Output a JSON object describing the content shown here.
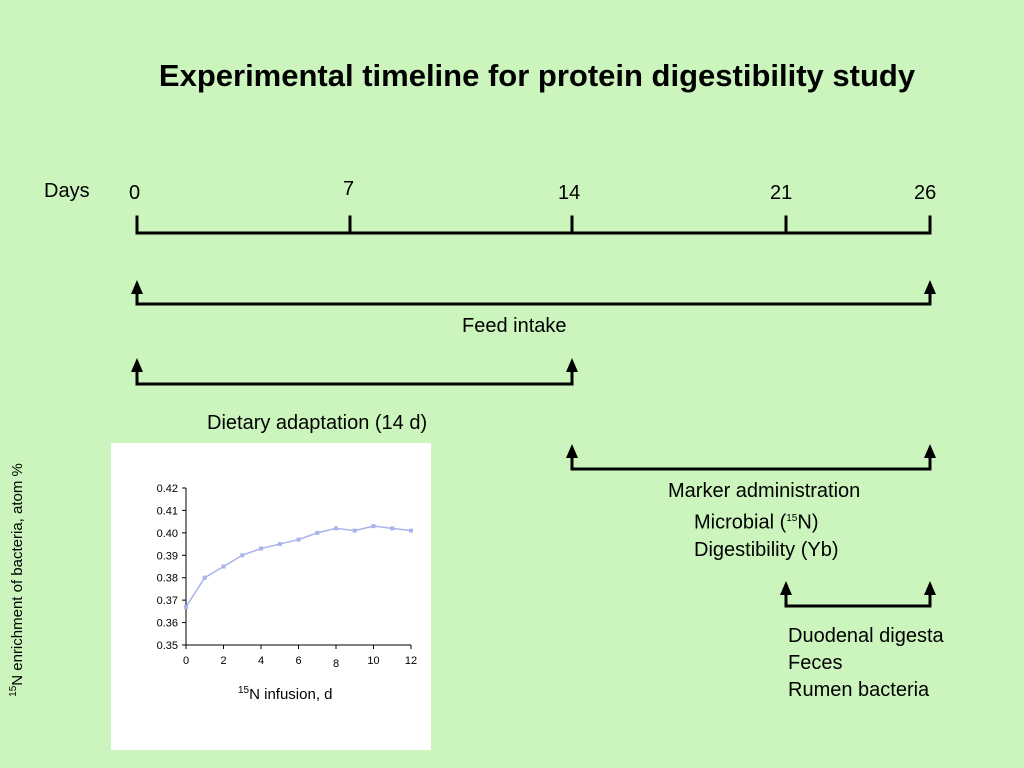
{
  "title": "Experimental timeline for protein digestibility study",
  "timeline": {
    "axis_label": "Days",
    "ticks": [
      "0",
      "7",
      "14",
      "21",
      "26"
    ]
  },
  "phases": {
    "feed_intake": "Feed intake",
    "dietary_adaptation": "Dietary adaptation (14 d)",
    "marker": {
      "title": "Marker administration",
      "microbial_prefix": "Microbial (",
      "microbial_sup": "15",
      "microbial_suffix": "N)",
      "digestibility": "Digestibility (Yb)"
    },
    "sampling": [
      "Duodenal digesta",
      "Feces",
      "Rumen bacteria"
    ]
  },
  "inset_chart": {
    "ylabel_sup": "15",
    "ylabel_text": "N enrichment of bacteria, atom %",
    "xlabel_sup": "15",
    "xlabel_text": "N infusion, d",
    "line_color": "#a9b3ec"
  },
  "chart_data": {
    "type": "line",
    "x": [
      0,
      1,
      2,
      3,
      4,
      5,
      6,
      7,
      8,
      9,
      10,
      11,
      12
    ],
    "values": [
      0.367,
      0.38,
      0.385,
      0.39,
      0.393,
      0.395,
      0.397,
      0.4,
      0.402,
      0.401,
      0.403,
      0.402,
      0.401
    ],
    "xlim": [
      0,
      12
    ],
    "ylim": [
      0.35,
      0.42
    ],
    "yticks": [
      "0.35",
      "0.36",
      "0.37",
      "0.38",
      "0.39",
      "0.40",
      "0.41",
      "0.42"
    ],
    "xticks": [
      "0",
      "2",
      "4",
      "6",
      "8",
      "10",
      "12"
    ]
  }
}
